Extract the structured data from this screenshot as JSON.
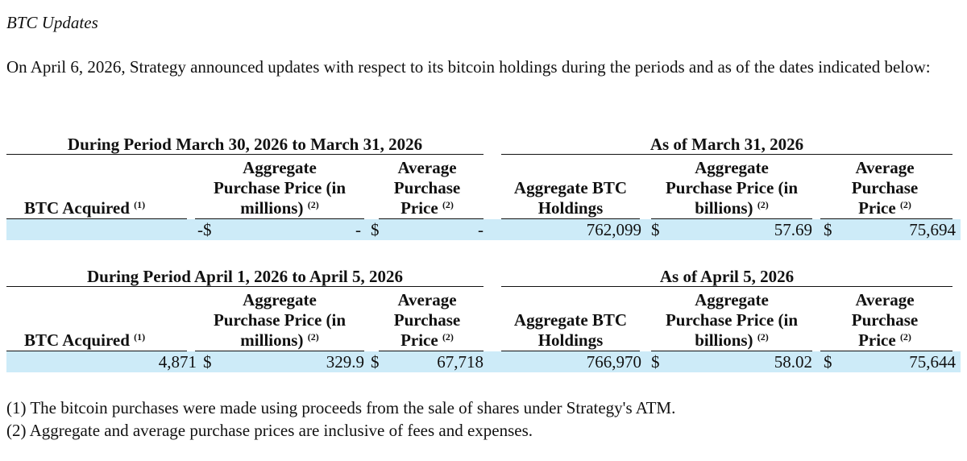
{
  "section_title": "BTC Updates",
  "intro": "On April 6, 2026, Strategy announced updates with respect to its bitcoin holdings during the periods and as of the dates indicated below:",
  "footnote_marks": {
    "one": "(1)",
    "two": "(2)"
  },
  "columns": {
    "btc_acquired": "BTC Acquired",
    "agg_price_millions": [
      "Aggregate",
      "Purchase Price (in",
      "millions)"
    ],
    "avg_price": [
      "Average",
      "Purchase",
      "Price"
    ],
    "agg_holdings": [
      "Aggregate BTC",
      "Holdings"
    ],
    "agg_price_billions": [
      "Aggregate",
      "Purchase Price (in",
      "billions)"
    ]
  },
  "currency_symbol": "$",
  "tables": [
    {
      "period_heading": "During Period March 30, 2026 to March 31, 2026",
      "asof_heading": "As of March 31, 2026",
      "row": {
        "btc_acquired": "-",
        "agg_price_millions": "-",
        "avg_price": "-",
        "holdings": "762,099",
        "agg_price_billions": "57.69",
        "avg_price_total": "75,694"
      }
    },
    {
      "period_heading": "During Period April 1, 2026 to April 5, 2026",
      "asof_heading": "As of April 5, 2026",
      "row": {
        "btc_acquired": "4,871",
        "agg_price_millions": "329.9",
        "avg_price": "67,718",
        "holdings": "766,970",
        "agg_price_billions": "58.02",
        "avg_price_total": "75,644"
      }
    }
  ],
  "footnotes": [
    "(1) The bitcoin purchases were made using proceeds from the sale of shares under Strategy's ATM.",
    "(2) Aggregate and average purchase prices are inclusive of fees and expenses."
  ]
}
